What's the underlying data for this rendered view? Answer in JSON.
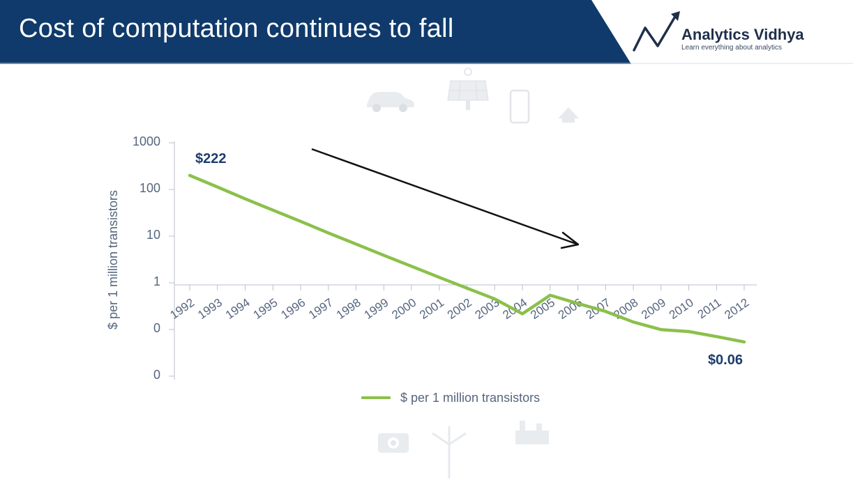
{
  "header": {
    "title": "Cost of computation continues to fall",
    "background_color": "#0f3a6b"
  },
  "logo": {
    "name": "Analytics Vidhya",
    "tagline": "Learn everything about analytics",
    "icon": "trend-arrow-logo-icon"
  },
  "decorations": {
    "top_icons": [
      "car-icon",
      "solar-panel-icon",
      "smartphone-icon",
      "house-icon"
    ],
    "bottom_icons": [
      "camera-icon",
      "wind-turbine-icon",
      "factory-icon"
    ]
  },
  "chart_data": {
    "type": "line",
    "title": "",
    "xlabel": "",
    "ylabel": "$ per 1 million transistors",
    "y_scale": "log",
    "y_ticks": [
      "1000",
      "100",
      "10",
      "1",
      "0",
      "0"
    ],
    "x": [
      "1992",
      "1993",
      "1994",
      "1995",
      "1996",
      "1997",
      "1998",
      "1999",
      "2000",
      "2001",
      "2002",
      "2003",
      "2004",
      "2005",
      "2006",
      "2007",
      "2008",
      "2009",
      "2010",
      "2011",
      "2012"
    ],
    "series": [
      {
        "name": "$ per 1 million transistors",
        "color": "#8cc04b",
        "values": [
          222,
          125,
          70,
          40,
          23,
          13,
          7.5,
          4.3,
          2.5,
          1.45,
          0.85,
          0.5,
          0.24,
          0.6,
          0.4,
          0.27,
          0.16,
          0.11,
          0.1,
          0.078,
          0.06
        ]
      }
    ],
    "annotations": [
      {
        "text": "$222",
        "x": "1992",
        "y": 222
      },
      {
        "text": "$0.06",
        "x": "2012",
        "y": 0.06
      }
    ],
    "trend_arrow": "downward",
    "legend_position": "bottom",
    "grid": false
  }
}
